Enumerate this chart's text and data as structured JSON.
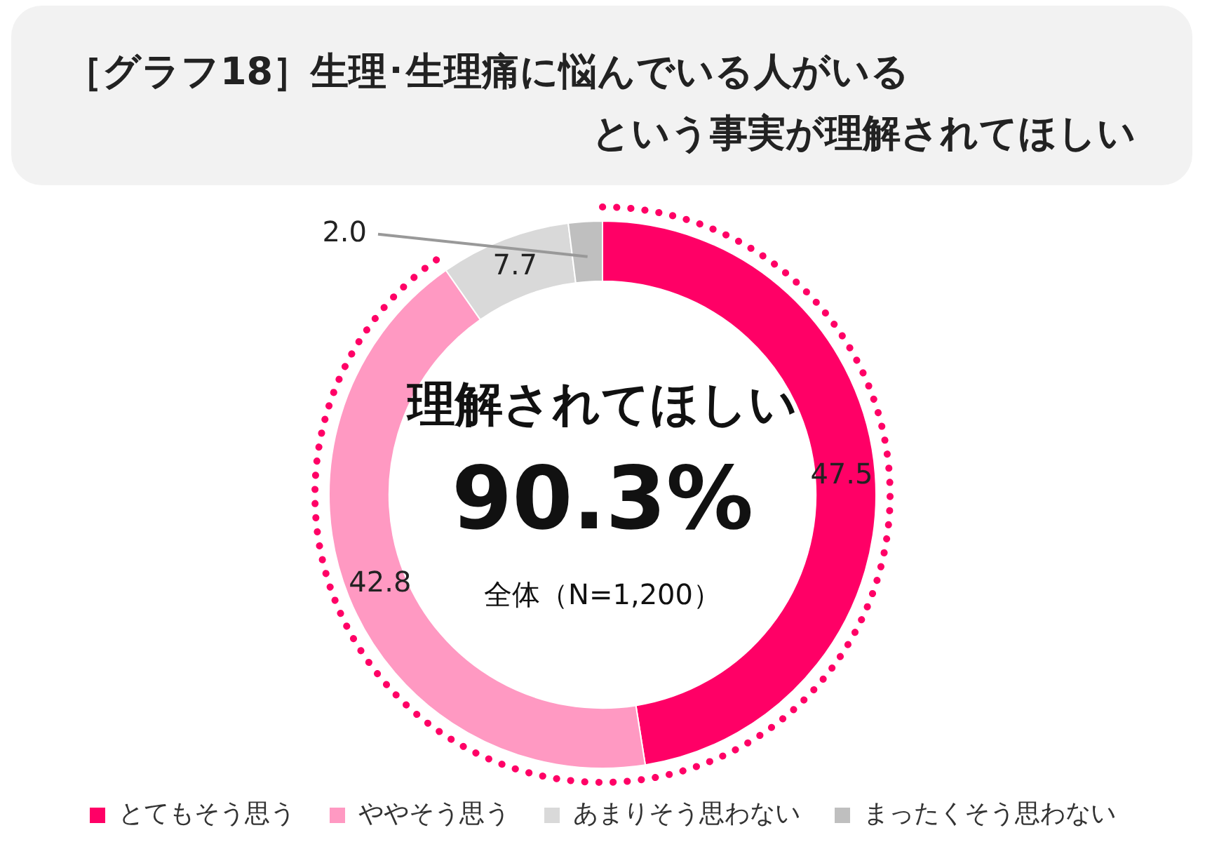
{
  "chart_data": {
    "type": "donut",
    "title": "［グラフ18］生理･生理痛に悩んでいる人がいるという事実が理解されてほしい",
    "categories": [
      "とてもそう思う",
      "ややそう思う",
      "あまりそう思わない",
      "まったくそう思わない"
    ],
    "values": [
      47.5,
      42.8,
      7.7,
      2.0
    ],
    "colors": [
      "#ff0066",
      "#ff99c2",
      "#d9d9d9",
      "#bfbfbf"
    ],
    "value_labels": [
      "47.5",
      "42.8",
      "7.7",
      "2.0"
    ],
    "legend": "bottom",
    "annotations": [
      "理解されてほしい",
      "90.3%",
      "全体（N=1,200）"
    ]
  }
}
